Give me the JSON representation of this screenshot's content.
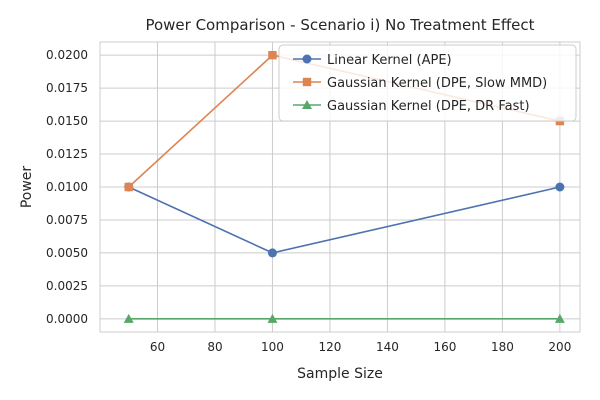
{
  "chart_data": {
    "type": "line",
    "title": "Power Comparison - Scenario i) No Treatment Effect",
    "xlabel": "Sample Size",
    "ylabel": "Power",
    "xlim": [
      40,
      207
    ],
    "ylim": [
      -0.001,
      0.021
    ],
    "xticks": [
      60,
      80,
      100,
      120,
      140,
      160,
      180,
      200
    ],
    "xtick_labels": [
      "60",
      "80",
      "100",
      "120",
      "140",
      "160",
      "180",
      "200"
    ],
    "yticks": [
      0,
      0.0025,
      0.005,
      0.0075,
      0.01,
      0.0125,
      0.015,
      0.0175,
      0.02
    ],
    "ytick_labels": [
      "0.0000",
      "0.0025",
      "0.0050",
      "0.0075",
      "0.0100",
      "0.0125",
      "0.0150",
      "0.0175",
      "0.0200"
    ],
    "grid": true,
    "legend_position": "top-right",
    "x": [
      50,
      100,
      200
    ],
    "series": [
      {
        "name": "Linear Kernel (APE)",
        "values": [
          0.01,
          0.005,
          0.01
        ],
        "color": "#4c72b0",
        "marker": "circle"
      },
      {
        "name": "Gaussian Kernel (DPE, Slow MMD)",
        "values": [
          0.01,
          0.02,
          0.015
        ],
        "color": "#dd8452",
        "marker": "square"
      },
      {
        "name": "Gaussian Kernel (DPE, DR Fast)",
        "values": [
          0.0,
          0.0,
          0.0
        ],
        "color": "#55a868",
        "marker": "triangle"
      }
    ]
  }
}
